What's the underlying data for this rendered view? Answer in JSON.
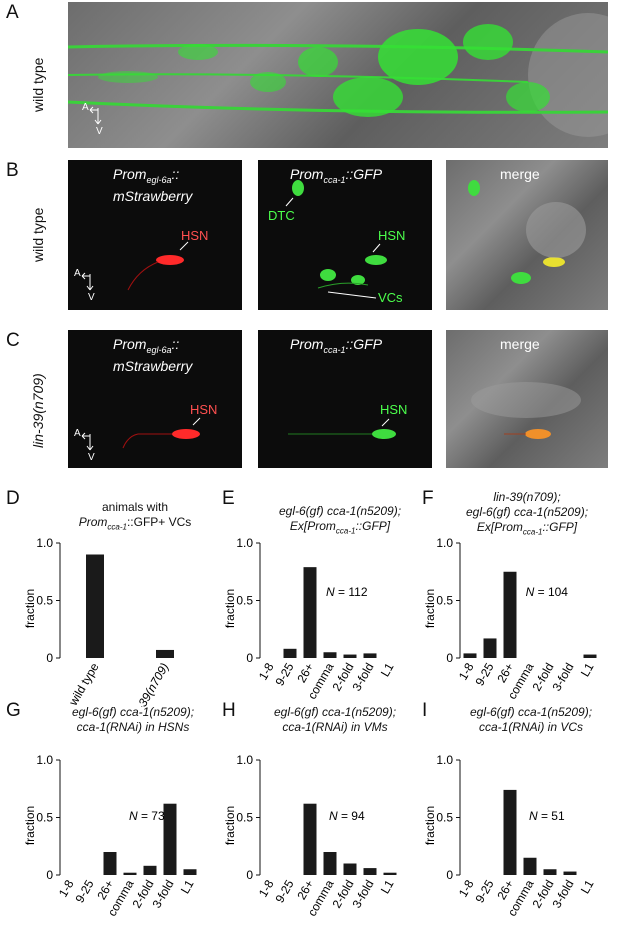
{
  "panels": {
    "A": {
      "letter": "A",
      "side_label": "wild type",
      "axis_a": "A",
      "axis_v": "V"
    },
    "B": {
      "letter": "B",
      "side_label": "wild type",
      "axis_a": "A",
      "axis_v": "V",
      "img1_title_line1": "Prom",
      "img1_title_sub": "egl-6a",
      "img1_title_suffix": "::",
      "img1_title_line2": "mStrawberry",
      "img1_cell": "HSN",
      "img2_title_prefix": "Prom",
      "img2_title_sub": "cca-1",
      "img2_title_suffix": "::GFP",
      "img2_cells": [
        "DTC",
        "HSN",
        "VCs"
      ],
      "img3_title": "merge"
    },
    "C": {
      "letter": "C",
      "side_label": "lin-39(n709)",
      "axis_a": "A",
      "axis_v": "V",
      "img1_title_line1": "Prom",
      "img1_title_sub": "egl-6a",
      "img1_title_suffix": "::",
      "img1_title_line2": "mStrawberry",
      "img1_cell": "HSN",
      "img2_title_prefix": "Prom",
      "img2_title_sub": "cca-1",
      "img2_title_suffix": "::GFP",
      "img2_cell": "HSN",
      "img3_title": "merge"
    }
  },
  "chart_data": [
    {
      "panel": "D",
      "type": "bar",
      "title_line1": "animals with",
      "title_line2_prefix": "Prom",
      "title_line2_sub": "cca-1",
      "title_line2_suffix": "::GFP+ VCs",
      "ylabel": "fraction",
      "ylim": [
        0,
        1.0
      ],
      "yticks": [
        "0",
        "0.5",
        "1.0"
      ],
      "categories": [
        "wild type",
        "lin-39(n709)"
      ],
      "values": [
        0.9,
        0.07
      ],
      "n_label": ""
    },
    {
      "panel": "E",
      "type": "bar",
      "title_line1": "egl-6(gf) cca-1(n5209);",
      "title_line2_prefix": "Ex[Prom",
      "title_line2_sub": "cca-1",
      "title_line2_suffix": "::GFP]",
      "ylabel": "fraction",
      "ylim": [
        0,
        1.0
      ],
      "yticks": [
        "0",
        "0.5",
        "1.0"
      ],
      "categories": [
        "1-8",
        "9-25",
        "26+",
        "comma",
        "2-fold",
        "3-fold",
        "L1"
      ],
      "values": [
        0.0,
        0.08,
        0.79,
        0.05,
        0.03,
        0.04,
        0.0
      ],
      "n_label": "N = 112"
    },
    {
      "panel": "F",
      "type": "bar",
      "title_line0": "lin-39(n709);",
      "title_line1": "egl-6(gf) cca-1(n5209);",
      "title_line2_prefix": "Ex[Prom",
      "title_line2_sub": "cca-1",
      "title_line2_suffix": "::GFP]",
      "ylabel": "fraction",
      "ylim": [
        0,
        1.0
      ],
      "yticks": [
        "0",
        "0.5",
        "1.0"
      ],
      "categories": [
        "1-8",
        "9-25",
        "26+",
        "comma",
        "2-fold",
        "3-fold",
        "L1"
      ],
      "values": [
        0.04,
        0.17,
        0.75,
        0.0,
        0.0,
        0.0,
        0.03
      ],
      "n_label": "N = 104"
    },
    {
      "panel": "G",
      "type": "bar",
      "title_line1": "egl-6(gf) cca-1(n5209);",
      "title_line2": "cca-1(RNAi) in HSNs",
      "ylabel": "fraction",
      "ylim": [
        0,
        1.0
      ],
      "yticks": [
        "0",
        "0.5",
        "1.0"
      ],
      "categories": [
        "1-8",
        "9-25",
        "26+",
        "comma",
        "2-fold",
        "3-fold",
        "L1"
      ],
      "values": [
        0.0,
        0.0,
        0.2,
        0.02,
        0.08,
        0.62,
        0.05
      ],
      "n_label": "N = 73"
    },
    {
      "panel": "H",
      "type": "bar",
      "title_line1": "egl-6(gf) cca-1(n5209);",
      "title_line2": "cca-1(RNAi) in VMs",
      "ylabel": "fraction",
      "ylim": [
        0,
        1.0
      ],
      "yticks": [
        "0",
        "0.5",
        "1.0"
      ],
      "categories": [
        "1-8",
        "9-25",
        "26+",
        "comma",
        "2-fold",
        "3-fold",
        "L1"
      ],
      "values": [
        0.0,
        0.0,
        0.62,
        0.2,
        0.1,
        0.06,
        0.02
      ],
      "n_label": "N = 94"
    },
    {
      "panel": "I",
      "type": "bar",
      "title_line1": "egl-6(gf) cca-1(n5209);",
      "title_line2": "cca-1(RNAi) in VCs",
      "ylabel": "fraction",
      "ylim": [
        0,
        1.0
      ],
      "yticks": [
        "0",
        "0.5",
        "1.0"
      ],
      "categories": [
        "1-8",
        "9-25",
        "26+",
        "comma",
        "2-fold",
        "3-fold",
        "L1"
      ],
      "values": [
        0.0,
        0.0,
        0.74,
        0.15,
        0.05,
        0.03,
        0.0
      ],
      "n_label": "N = 51"
    }
  ]
}
